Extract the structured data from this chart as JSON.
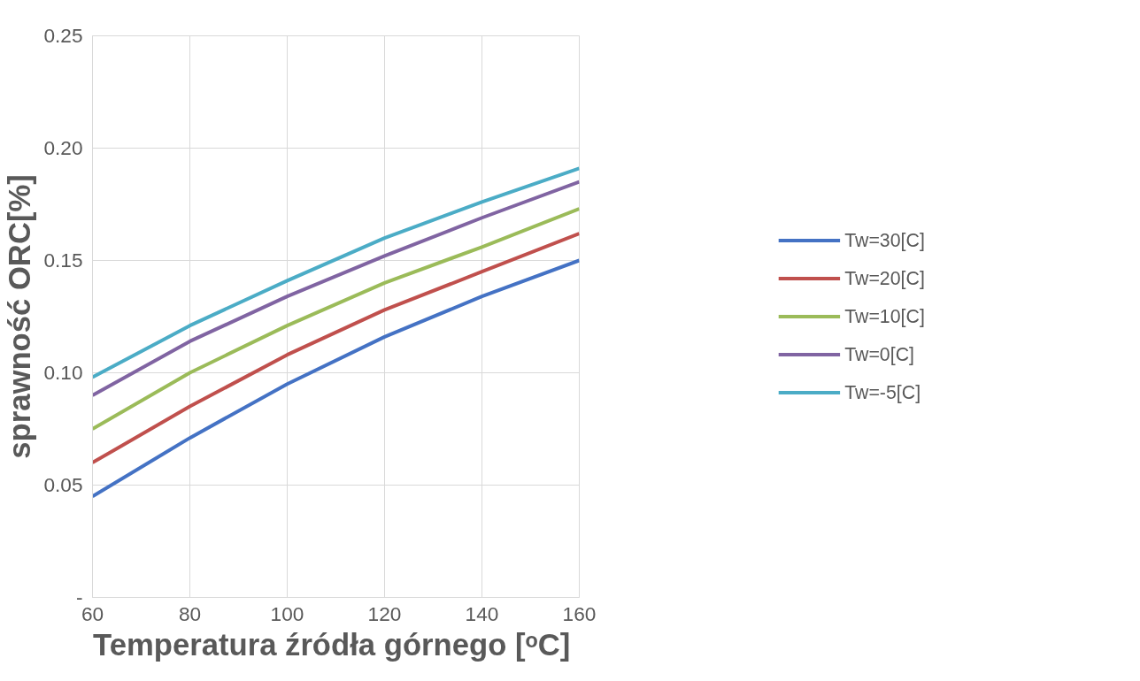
{
  "chart_data": {
    "type": "line",
    "xlabel": "Temperatura  źródła górnego [ᵒC]",
    "ylabel": "sprawność ORC[%]",
    "x": [
      60,
      80,
      100,
      120,
      140,
      160
    ],
    "series": [
      {
        "name": "Tw=30[C]",
        "color": "#4472c4",
        "values": [
          0.045,
          0.071,
          0.095,
          0.116,
          0.134,
          0.15
        ]
      },
      {
        "name": "Tw=20[C]",
        "color": "#c0504d",
        "values": [
          0.06,
          0.085,
          0.108,
          0.128,
          0.145,
          0.162
        ]
      },
      {
        "name": "Tw=10[C]",
        "color": "#9bbb59",
        "values": [
          0.075,
          0.1,
          0.121,
          0.14,
          0.156,
          0.173
        ]
      },
      {
        "name": "Tw=0[C]",
        "color": "#8064a2",
        "values": [
          0.09,
          0.114,
          0.134,
          0.152,
          0.169,
          0.185
        ]
      },
      {
        "name": "Tw=-5[C]",
        "color": "#4bacc6",
        "values": [
          0.098,
          0.121,
          0.141,
          0.16,
          0.176,
          0.191
        ]
      }
    ],
    "xlim": [
      60,
      160
    ],
    "xticks": [
      60,
      80,
      100,
      120,
      140,
      160
    ],
    "ylim": [
      0,
      0.25
    ],
    "yticks": [
      {
        "value": 0,
        "label": "-"
      },
      {
        "value": 0.05,
        "label": "0.05"
      },
      {
        "value": 0.1,
        "label": "0.10"
      },
      {
        "value": 0.15,
        "label": "0.15"
      },
      {
        "value": 0.2,
        "label": "0.20"
      },
      {
        "value": 0.25,
        "label": "0.25"
      }
    ],
    "grid": true,
    "legend": "right",
    "marker": "none",
    "line_style": "solid"
  }
}
